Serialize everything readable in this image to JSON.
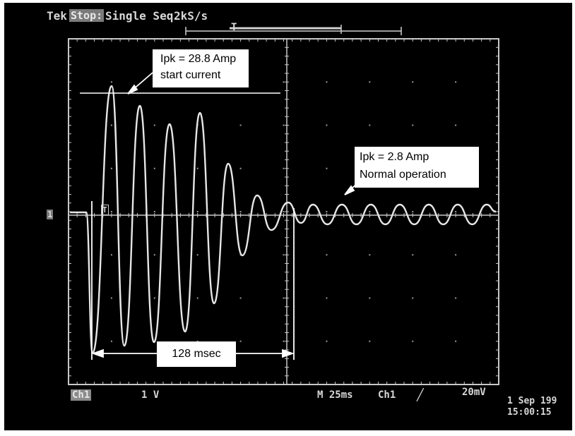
{
  "header": {
    "brand": "Tek",
    "state": "Stop:",
    "mode": "Single Seq",
    "rate": "2kS/s",
    "trigger_marker": "T"
  },
  "channel_marker": "1",
  "cursor_marker": "T",
  "annotations": {
    "start": {
      "line1": "Ipk = 28.8 Amp",
      "line2": "start current"
    },
    "normal": {
      "line1": "Ipk = 2.8 Amp",
      "line2": "Normal operation"
    },
    "duration": "128 msec"
  },
  "footer": {
    "channel": "Ch1",
    "volts_per_div": "1 V",
    "timebase": "M 25ms",
    "trigger_source": "Ch1",
    "trigger_slope": "╱",
    "trigger_level": "20mV"
  },
  "timestamp": {
    "date": "1 Sep 199",
    "time": "15:00:15"
  },
  "colors": {
    "screen": "#000000",
    "trace": "#e6e6e6",
    "grid": "#bdbdbd",
    "highlight": "#7a7a7a"
  }
}
